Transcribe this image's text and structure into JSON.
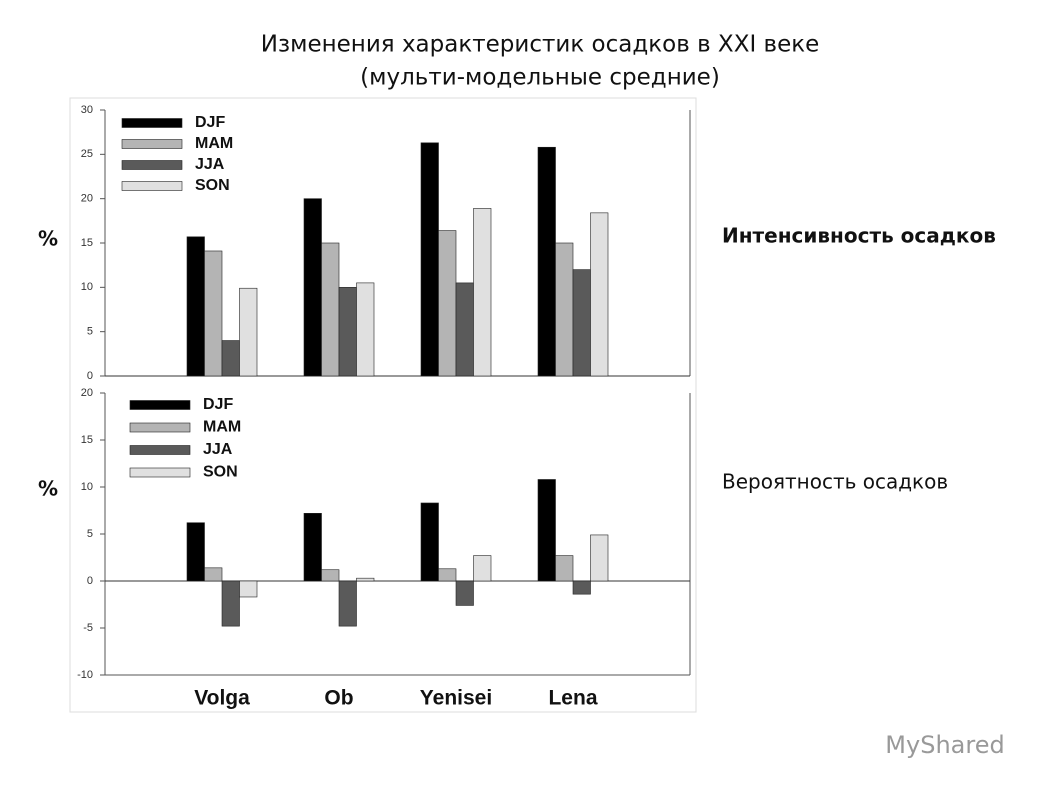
{
  "title": "Изменения характеристик осадков в XXI веке",
  "subtitle": "(мульти-модельные средние)",
  "watermark": "MyShared",
  "chart_data": [
    {
      "type": "bar",
      "label": "Интенсивность осадков",
      "ylabel": "%",
      "categories": [
        null,
        null,
        null,
        null
      ],
      "series": [
        {
          "name": "DJF",
          "color": "#000000",
          "values": [
            15.7,
            20,
            26.3,
            25.8
          ]
        },
        {
          "name": "MAM",
          "color": "#b4b4b4",
          "values": [
            14.1,
            15,
            16.4,
            15
          ]
        },
        {
          "name": "JJA",
          "color": "#5a5a5a",
          "values": [
            4,
            10,
            10.5,
            12
          ]
        },
        {
          "name": "SON",
          "color": "#e0e0e0",
          "values": [
            9.9,
            10.5,
            18.9,
            18.4
          ]
        }
      ],
      "ylim": [
        0,
        30
      ],
      "yticks": [
        0,
        5,
        10,
        15,
        20,
        25,
        30
      ],
      "legend": "upper left"
    },
    {
      "type": "bar",
      "label": "Вероятность осадков",
      "ylabel": "%",
      "categories": [
        "Volga",
        "Ob",
        "Yenisei",
        "Lena"
      ],
      "series": [
        {
          "name": "DJF",
          "color": "#000000",
          "values": [
            6.2,
            7.2,
            8.3,
            10.8
          ]
        },
        {
          "name": "MAM",
          "color": "#b4b4b4",
          "values": [
            1.4,
            1.2,
            1.3,
            2.7
          ]
        },
        {
          "name": "JJA",
          "color": "#5a5a5a",
          "values": [
            -4.8,
            -4.8,
            -2.6,
            -1.4
          ]
        },
        {
          "name": "SON",
          "color": "#e0e0e0",
          "values": [
            -1.7,
            0.3,
            2.7,
            4.9
          ]
        }
      ],
      "ylim": [
        -10,
        20
      ],
      "yticks": [
        -10,
        -5,
        0,
        5,
        10,
        15,
        20
      ],
      "legend": "upper left"
    }
  ]
}
